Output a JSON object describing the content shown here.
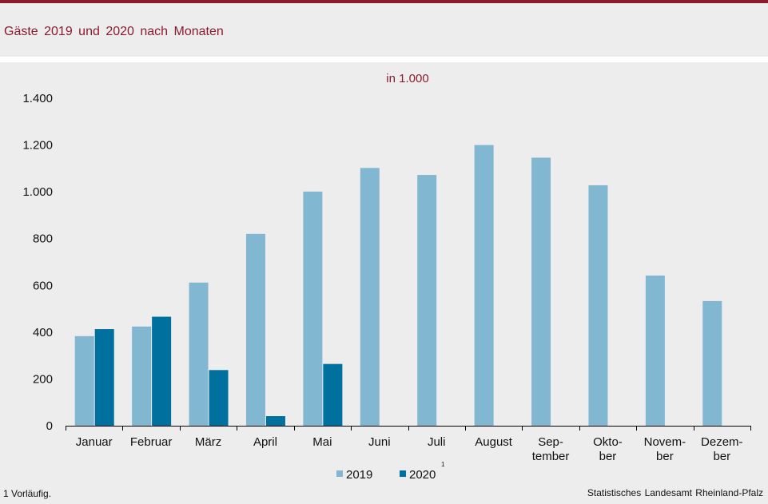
{
  "header": {
    "title": "Gäste  2019  und  2020  nach Monaten"
  },
  "chart_data": {
    "type": "bar",
    "subtitle": "in 1.000",
    "categories": [
      [
        "Januar"
      ],
      [
        "Februar"
      ],
      [
        "März"
      ],
      [
        "April"
      ],
      [
        "Mai"
      ],
      [
        "Juni"
      ],
      [
        "Juli"
      ],
      [
        "August"
      ],
      [
        "Sep-",
        "tember"
      ],
      [
        "Okto-",
        "ber"
      ],
      [
        "Novem-",
        "ber"
      ],
      [
        "Dezem-",
        "ber"
      ]
    ],
    "series": [
      {
        "name": "2019",
        "color": "#82b7d2",
        "values": [
          383,
          424,
          612,
          820,
          1001,
          1102,
          1072,
          1200,
          1146,
          1028,
          642,
          533
        ]
      },
      {
        "name": "2020",
        "footnote_marker": "1",
        "color": "#00709e",
        "values": [
          413,
          466,
          238,
          41,
          264,
          null,
          null,
          null,
          null,
          null,
          null,
          null
        ]
      }
    ],
    "ylim": [
      0,
      1400
    ],
    "yticks": [
      0,
      200,
      400,
      600,
      800,
      1000,
      1200,
      1400
    ],
    "ytick_labels": [
      "0",
      "200",
      "400",
      "600",
      "800",
      "1.000",
      "1.200",
      "1.400"
    ],
    "grid": false,
    "legend_position": "bottom"
  },
  "footnote": "1 Vorläufig.",
  "source": "Statistisches Landesamt  Rheinland-Pfalz"
}
